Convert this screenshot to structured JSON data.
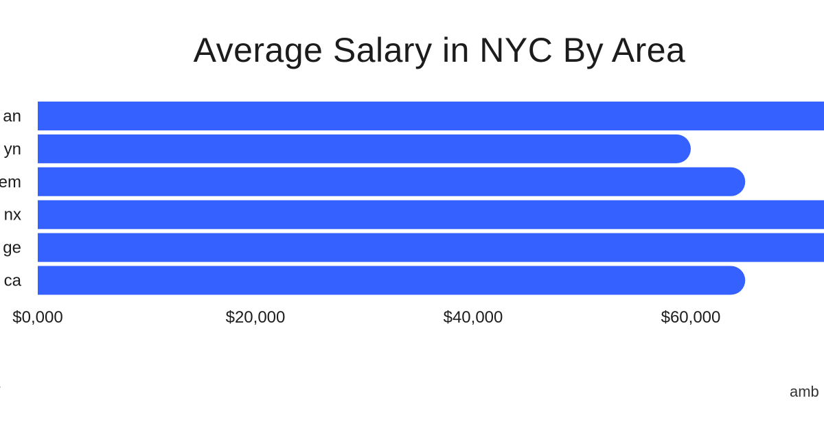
{
  "colors": {
    "bar": "#3461ff",
    "text": "#1c1c1c",
    "background": "#ffffff"
  },
  "footer": {
    "left": "-",
    "right": "amb"
  },
  "chart_data": {
    "type": "bar",
    "orientation": "horizontal",
    "title": "Average Salary in NYC By Area",
    "categories": [
      "an",
      "yn",
      "em",
      "nx",
      "ge",
      "ca"
    ],
    "values": [
      80000,
      60000,
      65000,
      80000,
      80000,
      65000
    ],
    "xlim": [
      0,
      80000
    ],
    "xticks": [
      0,
      20000,
      40000,
      60000
    ],
    "xtick_labels": [
      "$0,000",
      "$20,000",
      "$40,000",
      "$60,000"
    ],
    "xlabel": "",
    "ylabel": "",
    "grid": false,
    "legend": "none"
  }
}
